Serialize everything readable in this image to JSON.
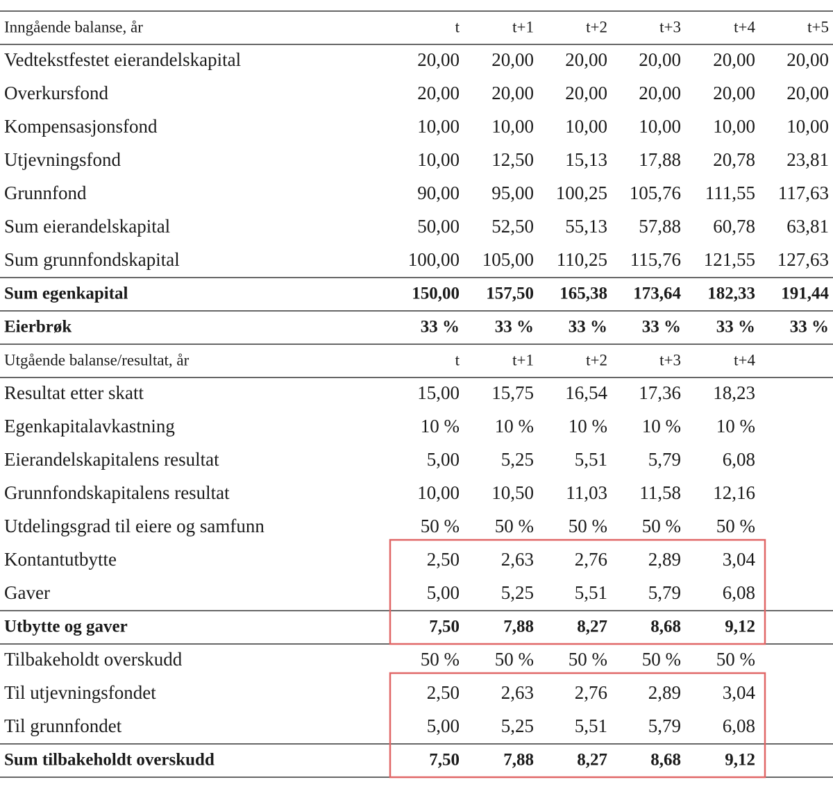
{
  "table": {
    "rows": [
      [
        "Inngående balanse, år",
        "t",
        "t+1",
        "t+2",
        "t+3",
        "t+4",
        "t+5"
      ],
      [
        "Vedtekstfestet eierandelskapital",
        "20,00",
        "20,00",
        "20,00",
        "20,00",
        "20,00",
        "20,00"
      ],
      [
        "Overkursfond",
        "20,00",
        "20,00",
        "20,00",
        "20,00",
        "20,00",
        "20,00"
      ],
      [
        "Kompensasjonsfond",
        "10,00",
        "10,00",
        "10,00",
        "10,00",
        "10,00",
        "10,00"
      ],
      [
        "Utjevningsfond",
        "10,00",
        "12,50",
        "15,13",
        "17,88",
        "20,78",
        "23,81"
      ],
      [
        "Grunnfond",
        "90,00",
        "95,00",
        "100,25",
        "105,76",
        "111,55",
        "117,63"
      ],
      [
        "Sum eierandelskapital",
        "50,00",
        "52,50",
        "55,13",
        "57,88",
        "60,78",
        "63,81"
      ],
      [
        "Sum grunnfondskapital",
        "100,00",
        "105,00",
        "110,25",
        "115,76",
        "121,55",
        "127,63"
      ],
      [
        "Sum egenkapital",
        "150,00",
        "157,50",
        "165,38",
        "173,64",
        "182,33",
        "191,44"
      ],
      [
        "Eierbrøk",
        "33 %",
        "33 %",
        "33 %",
        "33 %",
        "33 %",
        "33 %"
      ],
      [
        "Utgående balanse/resultat, år",
        "t",
        "t+1",
        "t+2",
        "t+3",
        "t+4"
      ],
      [
        "Resultat etter skatt",
        "15,00",
        "15,75",
        "16,54",
        "17,36",
        "18,23"
      ],
      [
        "Egenkapitalavkastning",
        "10 %",
        "10 %",
        "10 %",
        "10 %",
        "10 %"
      ],
      [
        "Eierandelskapitalens resultat",
        "5,00",
        "5,25",
        "5,51",
        "5,79",
        "6,08"
      ],
      [
        "Grunnfondskapitalens resultat",
        "10,00",
        "10,50",
        "11,03",
        "11,58",
        "12,16"
      ],
      [
        "Utdelingsgrad til eiere og samfunn",
        "50 %",
        "50 %",
        "50 %",
        "50 %",
        "50 %"
      ],
      [
        "Kontantutbytte",
        "2,50",
        "2,63",
        "2,76",
        "2,89",
        "3,04"
      ],
      [
        "Gaver",
        "5,00",
        "5,25",
        "5,51",
        "5,79",
        "6,08"
      ],
      [
        "Utbytte og gaver",
        "7,50",
        "7,88",
        "8,27",
        "8,68",
        "9,12"
      ],
      [
        "Tilbakeholdt overskudd",
        "50 %",
        "50 %",
        "50 %",
        "50 %",
        "50 %"
      ],
      [
        "Til utjevningsfondet",
        "2,50",
        "2,63",
        "2,76",
        "2,89",
        "3,04"
      ],
      [
        "Til grunnfondet",
        "5,00",
        "5,25",
        "5,51",
        "5,79",
        "6,08"
      ],
      [
        "Sum tilbakeholdt overskudd",
        "7,50",
        "7,88",
        "8,27",
        "8,68",
        "9,12"
      ]
    ]
  }
}
